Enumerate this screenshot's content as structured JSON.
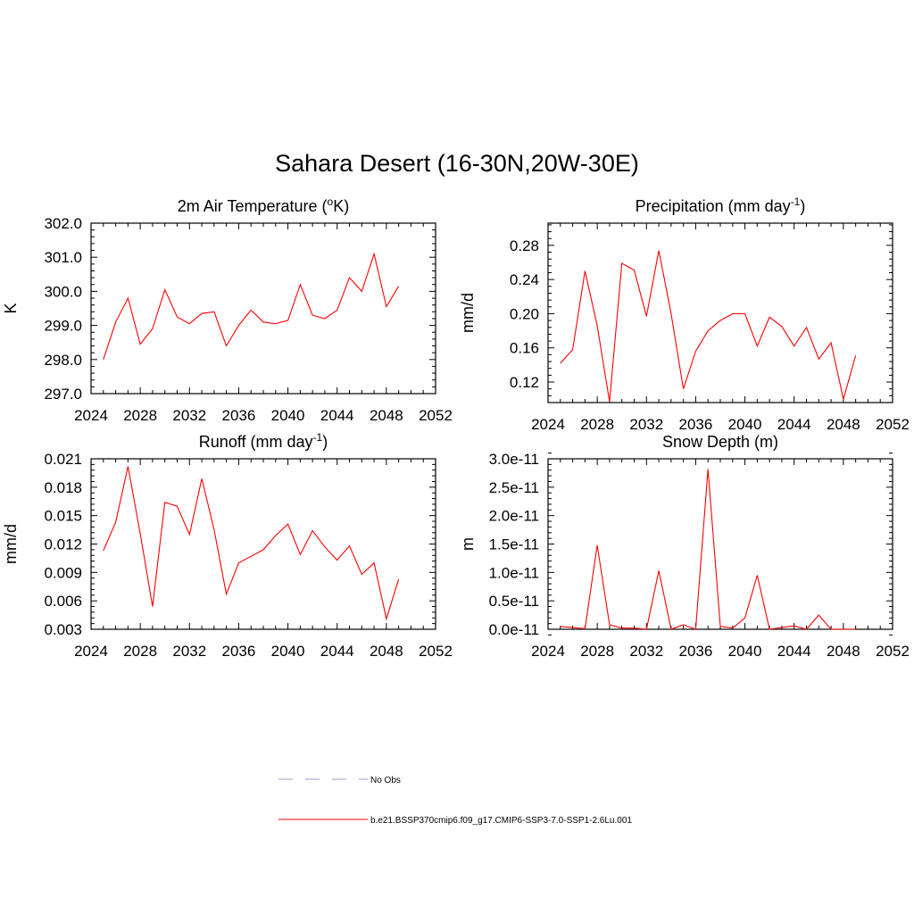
{
  "page": {
    "title": "Sahara Desert (16-30N,20W-30E)"
  },
  "legend": {
    "items": [
      {
        "label": "No Obs",
        "color": "#9999cc",
        "dash": true
      },
      {
        "label": "b.e21.BSSP370cmip6.f09_g17.CMIP6-SSP3-7.0-SSP1-2.6Lu.001",
        "color": "#ff0000",
        "dash": false
      }
    ]
  },
  "colors": {
    "series": "#ff0000",
    "axis": "#000000"
  },
  "chart_data": [
    {
      "type": "line",
      "title": "2m Air Temperature (",
      "title_sup": "o",
      "title_post": "K)",
      "ylabel": "K",
      "xlim": [
        2024,
        2052
      ],
      "ylim": [
        297.0,
        302.0
      ],
      "xticks": [
        2024,
        2028,
        2032,
        2036,
        2040,
        2044,
        2048,
        2052
      ],
      "yticks": [
        297.0,
        298.0,
        299.0,
        300.0,
        301.0,
        302.0
      ],
      "ytick_labels": [
        "297.0",
        "298.0",
        "299.0",
        "300.0",
        "301.0",
        "302.0"
      ],
      "x": [
        2025,
        2026,
        2027,
        2028,
        2029,
        2030,
        2031,
        2032,
        2033,
        2034,
        2035,
        2036,
        2037,
        2038,
        2039,
        2040,
        2041,
        2042,
        2043,
        2044,
        2045,
        2046,
        2047,
        2048,
        2049
      ],
      "y": [
        298.0,
        299.1,
        299.8,
        298.45,
        298.9,
        300.05,
        299.25,
        299.05,
        299.35,
        299.4,
        298.4,
        299.0,
        299.45,
        299.1,
        299.05,
        299.15,
        300.2,
        299.3,
        299.2,
        299.45,
        300.4,
        300.0,
        301.1,
        299.55,
        300.15
      ]
    },
    {
      "type": "line",
      "title": "Precipitation (mm day",
      "title_sup": "-1",
      "title_post": ")",
      "ylabel": "mm/d",
      "xlim": [
        2024,
        2052
      ],
      "ylim": [
        0.096,
        0.306
      ],
      "xticks": [
        2024,
        2028,
        2032,
        2036,
        2040,
        2044,
        2048,
        2052
      ],
      "yticks": [
        0.12,
        0.16,
        0.2,
        0.24,
        0.28
      ],
      "ytick_labels": [
        "0.12",
        "0.16",
        "0.20",
        "0.24",
        "0.28"
      ],
      "x": [
        2025,
        2026,
        2027,
        2028,
        2029,
        2030,
        2031,
        2032,
        2033,
        2034,
        2035,
        2036,
        2037,
        2038,
        2039,
        2040,
        2041,
        2042,
        2043,
        2044,
        2045,
        2046,
        2047,
        2048,
        2049
      ],
      "y": [
        0.142,
        0.158,
        0.25,
        0.186,
        0.097,
        0.259,
        0.251,
        0.197,
        0.274,
        0.2,
        0.112,
        0.156,
        0.18,
        0.192,
        0.2,
        0.2,
        0.162,
        0.196,
        0.185,
        0.162,
        0.184,
        0.147,
        0.166,
        0.1,
        0.151
      ]
    },
    {
      "type": "line",
      "title": "Runoff (mm day",
      "title_sup": "-1",
      "title_post": ")",
      "ylabel": "mm/d",
      "xlim": [
        2024,
        2052
      ],
      "ylim": [
        0.003,
        0.021
      ],
      "xticks": [
        2024,
        2028,
        2032,
        2036,
        2040,
        2044,
        2048,
        2052
      ],
      "yticks": [
        0.003,
        0.006,
        0.009,
        0.012,
        0.015,
        0.018,
        0.021
      ],
      "ytick_labels": [
        "0.003",
        "0.006",
        "0.009",
        "0.012",
        "0.015",
        "0.018",
        "0.021"
      ],
      "x": [
        2025,
        2026,
        2027,
        2028,
        2029,
        2030,
        2031,
        2032,
        2033,
        2034,
        2035,
        2036,
        2037,
        2038,
        2039,
        2040,
        2041,
        2042,
        2043,
        2044,
        2045,
        2046,
        2047,
        2048,
        2049
      ],
      "y": [
        0.0113,
        0.0143,
        0.0202,
        0.0131,
        0.0054,
        0.0164,
        0.016,
        0.013,
        0.0189,
        0.0135,
        0.0067,
        0.01,
        0.0107,
        0.0114,
        0.0129,
        0.0141,
        0.0109,
        0.0134,
        0.0117,
        0.0103,
        0.0118,
        0.0088,
        0.01,
        0.0041,
        0.0083
      ]
    },
    {
      "type": "line",
      "title": "Snow Depth (m)",
      "title_sup": "",
      "title_post": "",
      "ylabel": "m",
      "xlim": [
        2024,
        2052
      ],
      "ylim": [
        0.0,
        3e-11
      ],
      "xticks": [
        2024,
        2028,
        2032,
        2036,
        2040,
        2044,
        2048,
        2052
      ],
      "yticks": [
        0.0,
        5e-12,
        1e-11,
        1.5e-11,
        2e-11,
        2.5e-11,
        3e-11
      ],
      "ytick_labels": [
        "0.0e-11",
        "0.5e-11",
        "1.0e-11",
        "1.5e-11",
        "2.0e-11",
        "2.5e-11",
        "3.0e-11"
      ],
      "x": [
        2025,
        2026,
        2027,
        2028,
        2029,
        2030,
        2031,
        2032,
        2033,
        2034,
        2035,
        2036,
        2037,
        2038,
        2039,
        2040,
        2041,
        2042,
        2043,
        2044,
        2045,
        2046,
        2047,
        2048,
        2049
      ],
      "y": [
        5e-13,
        3e-13,
        1e-13,
        1.48e-11,
        8e-13,
        2e-13,
        2e-13,
        0.0,
        1.03e-11,
        0.0,
        8e-13,
        0.0,
        2.82e-11,
        5e-13,
        2e-13,
        2e-12,
        9.5e-12,
        0.0,
        3e-13,
        6e-13,
        0.0,
        2.5e-12,
        0.0,
        0.0,
        0.0
      ]
    }
  ]
}
